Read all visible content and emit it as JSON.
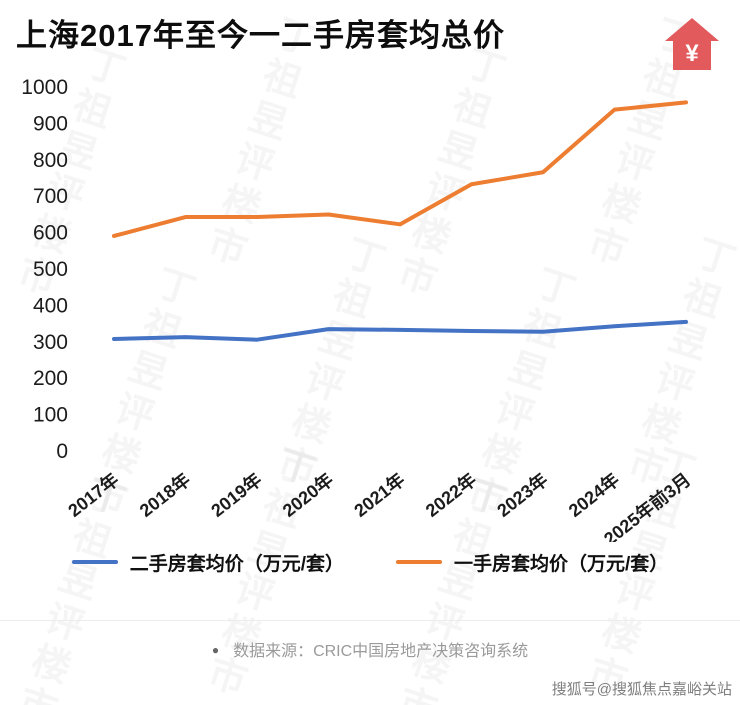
{
  "chart_data": {
    "type": "line",
    "title": "上海2017年至今一二手房套均总价",
    "categories": [
      "2017年",
      "2018年",
      "2019年",
      "2020年",
      "2021年",
      "2022年",
      "2023年",
      "2024年",
      "2025年前3月"
    ],
    "series": [
      {
        "name": "二手房套均价（万元/套）",
        "color": "#4472c4",
        "values": [
          305,
          310,
          303,
          332,
          330,
          327,
          325,
          340,
          352
        ]
      },
      {
        "name": "一手房套均价（万元/套）",
        "color": "#ed7d31",
        "values": [
          588,
          640,
          640,
          647,
          620,
          730,
          763,
          935,
          955
        ]
      }
    ],
    "xlabel": "",
    "ylabel": "",
    "ylim": [
      0,
      1000
    ],
    "ytick_step": 100,
    "grid": false,
    "legend_position": "bottom"
  },
  "icons": {
    "house_yen": "¥",
    "house_color": "#e25a5c"
  },
  "footer": {
    "bullet": "●",
    "source_text": "数据来源：CRIC中国房地产决策咨询系统"
  },
  "credit": {
    "text": "搜狐号@搜狐焦点嘉峪关站"
  },
  "watermark": {
    "text": "丁祖昱评楼市"
  }
}
